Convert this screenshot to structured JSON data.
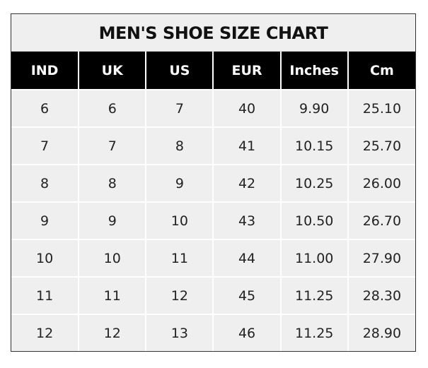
{
  "chart_data": {
    "type": "table",
    "title": "MEN'S SHOE SIZE CHART",
    "columns": [
      "IND",
      "UK",
      "US",
      "EUR",
      "Inches",
      "Cm"
    ],
    "rows": [
      [
        "6",
        "6",
        "7",
        "40",
        "9.90",
        "25.10"
      ],
      [
        "7",
        "7",
        "8",
        "41",
        "10.15",
        "25.70"
      ],
      [
        "8",
        "8",
        "9",
        "42",
        "10.25",
        "26.00"
      ],
      [
        "9",
        "9",
        "10",
        "43",
        "10.50",
        "26.70"
      ],
      [
        "10",
        "10",
        "11",
        "44",
        "11.00",
        "27.90"
      ],
      [
        "11",
        "11",
        "12",
        "45",
        "11.25",
        "28.30"
      ],
      [
        "12",
        "12",
        "13",
        "46",
        "11.25",
        "28.90"
      ]
    ],
    "colors": {
      "header_bg": "#000000",
      "header_text": "#ffffff",
      "cell_bg": "#efefef"
    }
  }
}
